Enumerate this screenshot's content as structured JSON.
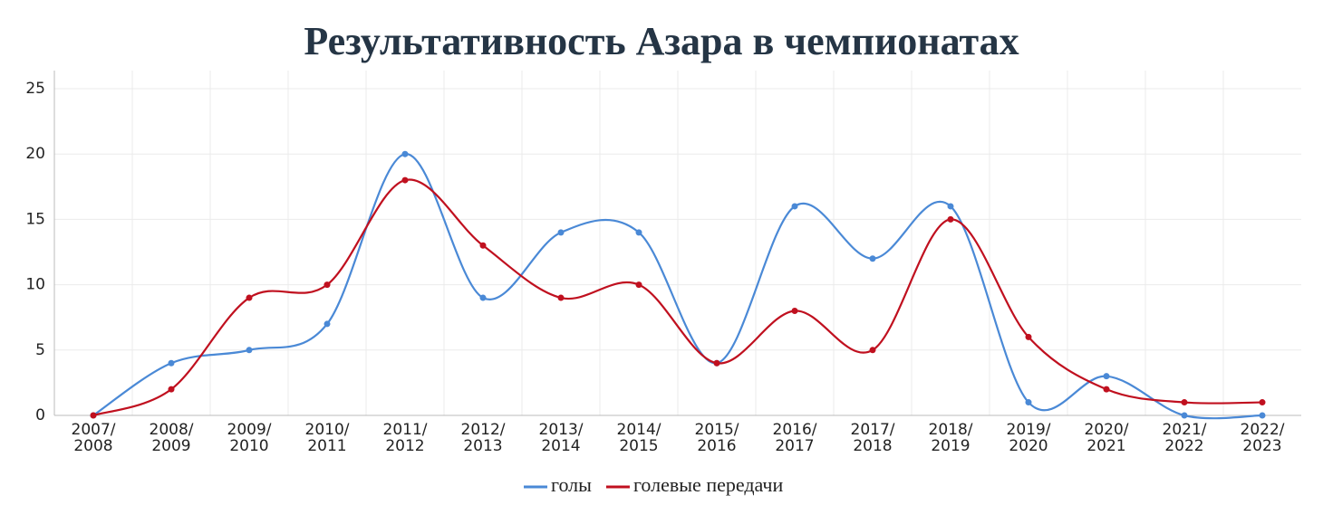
{
  "chart_data": {
    "type": "line",
    "title": "Результативность Азара в чемпионатах",
    "categories": [
      "2007/\n2008",
      "2008/\n2009",
      "2009/\n2010",
      "2010/\n2011",
      "2011/\n2012",
      "2012/\n2013",
      "2013/\n2014",
      "2014/\n2015",
      "2015/\n2016",
      "2016/\n2017",
      "2017/\n2018",
      "2018/\n2019",
      "2019/\n2020",
      "2020/\n2021",
      "2021/\n2022",
      "2022/\n2023"
    ],
    "series": [
      {
        "name": "голы",
        "color": "#4a89d6",
        "values": [
          0,
          4,
          5,
          7,
          20,
          9,
          14,
          14,
          4,
          16,
          12,
          16,
          1,
          3,
          0,
          0
        ]
      },
      {
        "name": "голевые передачи",
        "color": "#c0101f",
        "values": [
          0,
          2,
          9,
          10,
          18,
          13,
          9,
          10,
          4,
          8,
          5,
          15,
          6,
          2,
          1,
          1
        ]
      }
    ],
    "ylim": [
      0,
      25
    ],
    "yticks": [
      0,
      5,
      10,
      15,
      20,
      25
    ],
    "grid": true,
    "legend": "bottom"
  }
}
